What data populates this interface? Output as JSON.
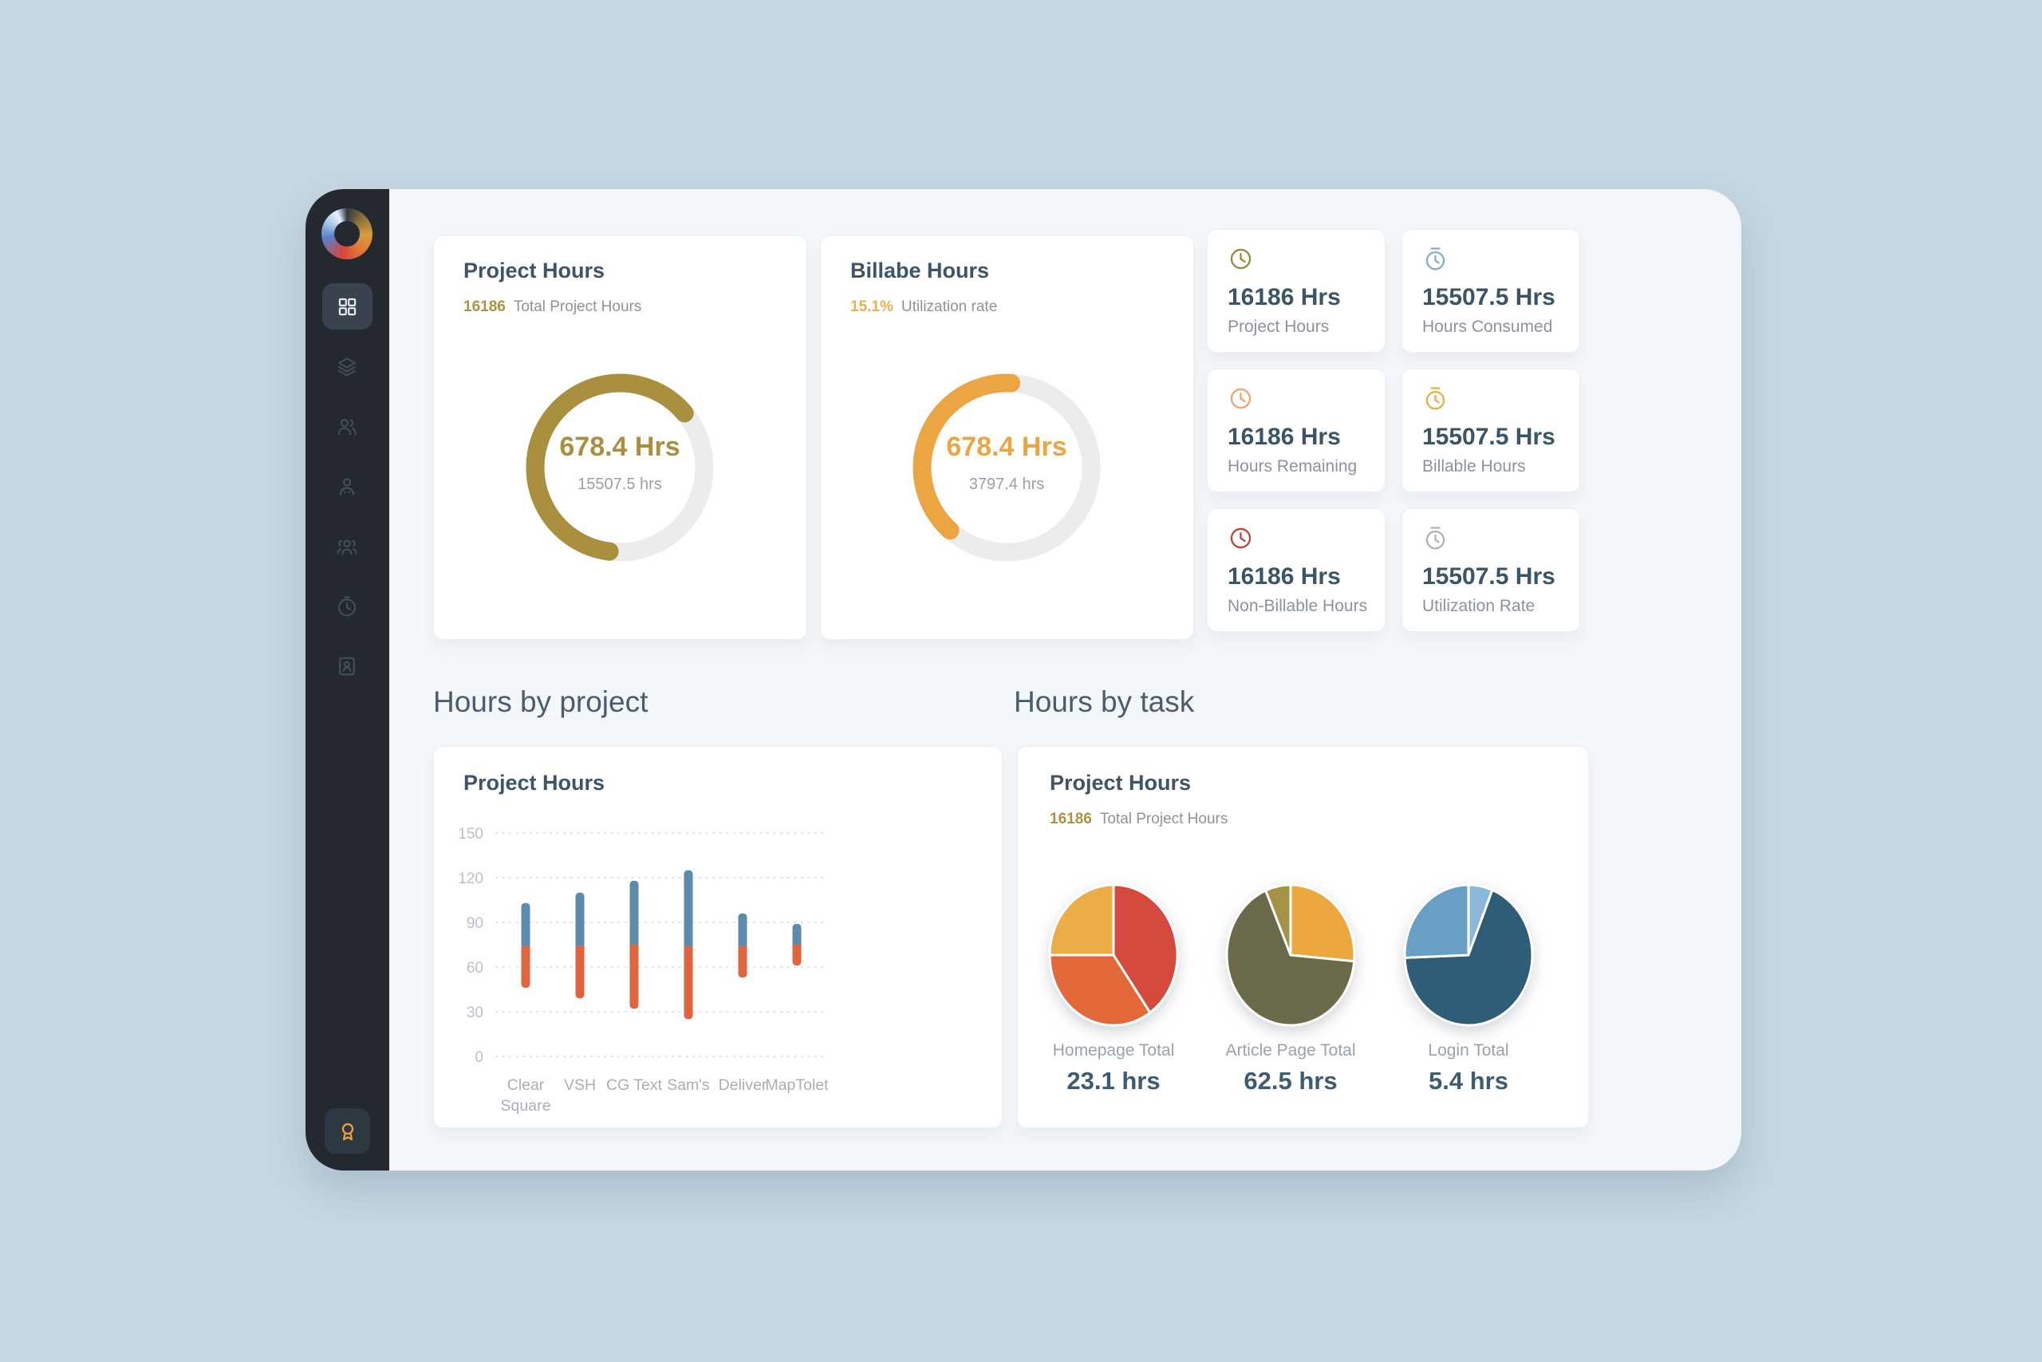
{
  "sidebar": {
    "nav": [
      {
        "id": "dashboard",
        "icon": "grid-icon",
        "active": true
      },
      {
        "id": "layers",
        "icon": "layers-icon",
        "active": false
      },
      {
        "id": "team",
        "icon": "users-icon",
        "active": false
      },
      {
        "id": "member",
        "icon": "user-icon",
        "active": false
      },
      {
        "id": "groups",
        "icon": "group-icon",
        "active": false
      },
      {
        "id": "time",
        "icon": "clock-icon",
        "active": false
      },
      {
        "id": "contacts",
        "icon": "id-card-icon",
        "active": false
      }
    ],
    "bottom": {
      "id": "achievements",
      "icon": "award-icon",
      "color": "#e8a33d"
    }
  },
  "donut_cards": [
    {
      "title": "Project Hours",
      "stat_value": "16186",
      "stat_label": "Total Project Hours",
      "stat_color": "#ab9245",
      "center_value": "678.4 Hrs",
      "center_sub": "15507.5 hrs",
      "arc": {
        "color": "#a98f3e",
        "track": "#ececec",
        "start_deg": 187,
        "sweep_deg": 223
      }
    },
    {
      "title": "Billabe Hours",
      "stat_value": "15.1%",
      "stat_label": "Utilization rate",
      "stat_color": "#eaaf4e",
      "center_value": "678.4 Hrs",
      "center_sub": "3797.4 hrs",
      "arc": {
        "color": "#eba543",
        "track": "#ececec",
        "start_deg": 222,
        "sweep_deg": 141
      }
    }
  ],
  "stat_cards": [
    {
      "value": "16186 Hrs",
      "label": "Project Hours",
      "icon": "clock-icon",
      "icon_color": "#9a8a3f"
    },
    {
      "value": "15507.5 Hrs",
      "label": "Hours Consumed",
      "icon": "stopwatch-icon",
      "icon_color": "#84adca"
    },
    {
      "value": "16186 Hrs",
      "label": "Hours Remaining",
      "icon": "clock-icon",
      "icon_color": "#eda66c"
    },
    {
      "value": "15507.5 Hrs",
      "label": "Billable Hours",
      "icon": "stopwatch-icon",
      "icon_color": "#e9ae45"
    },
    {
      "value": "16186 Hrs",
      "label": "Non-Billable Hours",
      "icon": "clock-icon",
      "icon_color": "#c2443a"
    },
    {
      "value": "15507.5 Hrs",
      "label": "Utilization Rate",
      "icon": "stopwatch-icon",
      "icon_color": "#b5aeb2"
    }
  ],
  "sections": {
    "left": "Hours by project",
    "right": "Hours by task"
  },
  "bar_card": {
    "title": "Project Hours",
    "chart": {
      "type": "bar",
      "variant": "floating-range-bars",
      "ylim": [
        0,
        150
      ],
      "yticks": [
        0,
        30,
        60,
        90,
        120,
        150
      ],
      "grid": true,
      "categories": [
        "Clear Square",
        "VSH",
        "CG Text",
        "Sam's",
        "Deliver",
        "MapTolet"
      ],
      "series": [
        {
          "name": "upper",
          "color": "#5d8bac",
          "ranges": [
            [
              74,
              103
            ],
            [
              74,
              110
            ],
            [
              75,
              118
            ],
            [
              74,
              125
            ],
            [
              74,
              96
            ],
            [
              75,
              89
            ]
          ]
        },
        {
          "name": "lower",
          "color": "#e0653c",
          "ranges": [
            [
              46,
              74
            ],
            [
              39,
              74
            ],
            [
              32,
              75
            ],
            [
              25,
              74
            ],
            [
              53,
              74
            ],
            [
              61,
              75
            ]
          ]
        }
      ]
    }
  },
  "pie_card": {
    "title": "Project Hours",
    "stat_value": "16186",
    "stat_label": "Total Project Hours",
    "stat_color": "#ab9245",
    "pies": [
      {
        "label": "Homepage Total",
        "value": "23.1 hrs",
        "type": "pie",
        "slices": [
          {
            "color": "#d44a3e",
            "pct": 40.3
          },
          {
            "color": "#e2683a",
            "pct": 34.7
          },
          {
            "color": "#ecad49",
            "pct": 25.0
          }
        ]
      },
      {
        "label": "Article Page Total",
        "value": "62.5 hrs",
        "type": "pie",
        "slices": [
          {
            "color": "#eaa83f",
            "pct": 26.4
          },
          {
            "color": "#6b6b4b",
            "pct": 67.2
          },
          {
            "color": "#a59244",
            "pct": 6.4
          }
        ]
      },
      {
        "label": "Login Total",
        "value": "5.4 hrs",
        "type": "pie",
        "slices": [
          {
            "color": "#8ab8d8",
            "pct": 6.1
          },
          {
            "color": "#2f5d78",
            "pct": 68.3
          },
          {
            "color": "#699fc4",
            "pct": 25.6
          }
        ]
      }
    ]
  }
}
